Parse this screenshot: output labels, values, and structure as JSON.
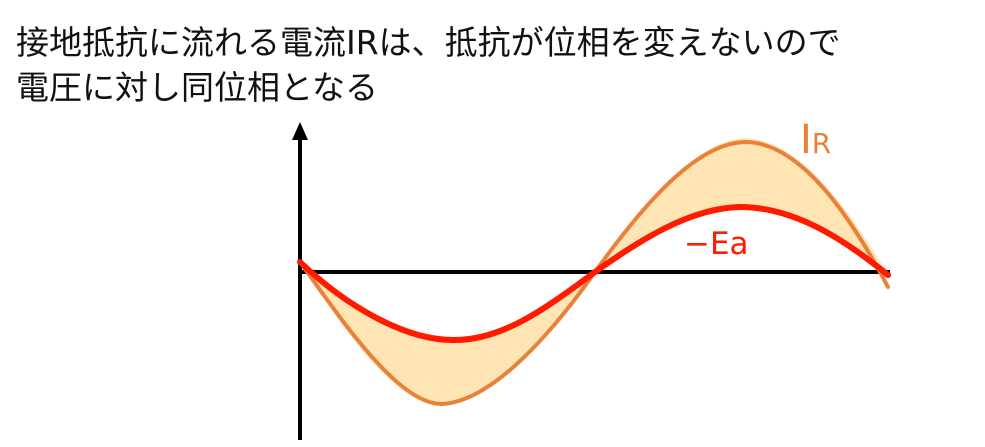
{
  "caption": {
    "line1": "接地抵抗に流れる電流IRは、抵抗が位相を変えないので",
    "line2": "電圧に対し同位相となる"
  },
  "labels": {
    "ir_main": "I",
    "ir_sub": "R",
    "ea": "−Ea"
  },
  "colors": {
    "ir_curve": "#e8823a",
    "ea_curve": "#ff1a00",
    "fill": "#ffe5b4",
    "axis": "#000000",
    "text": "#111111"
  }
}
